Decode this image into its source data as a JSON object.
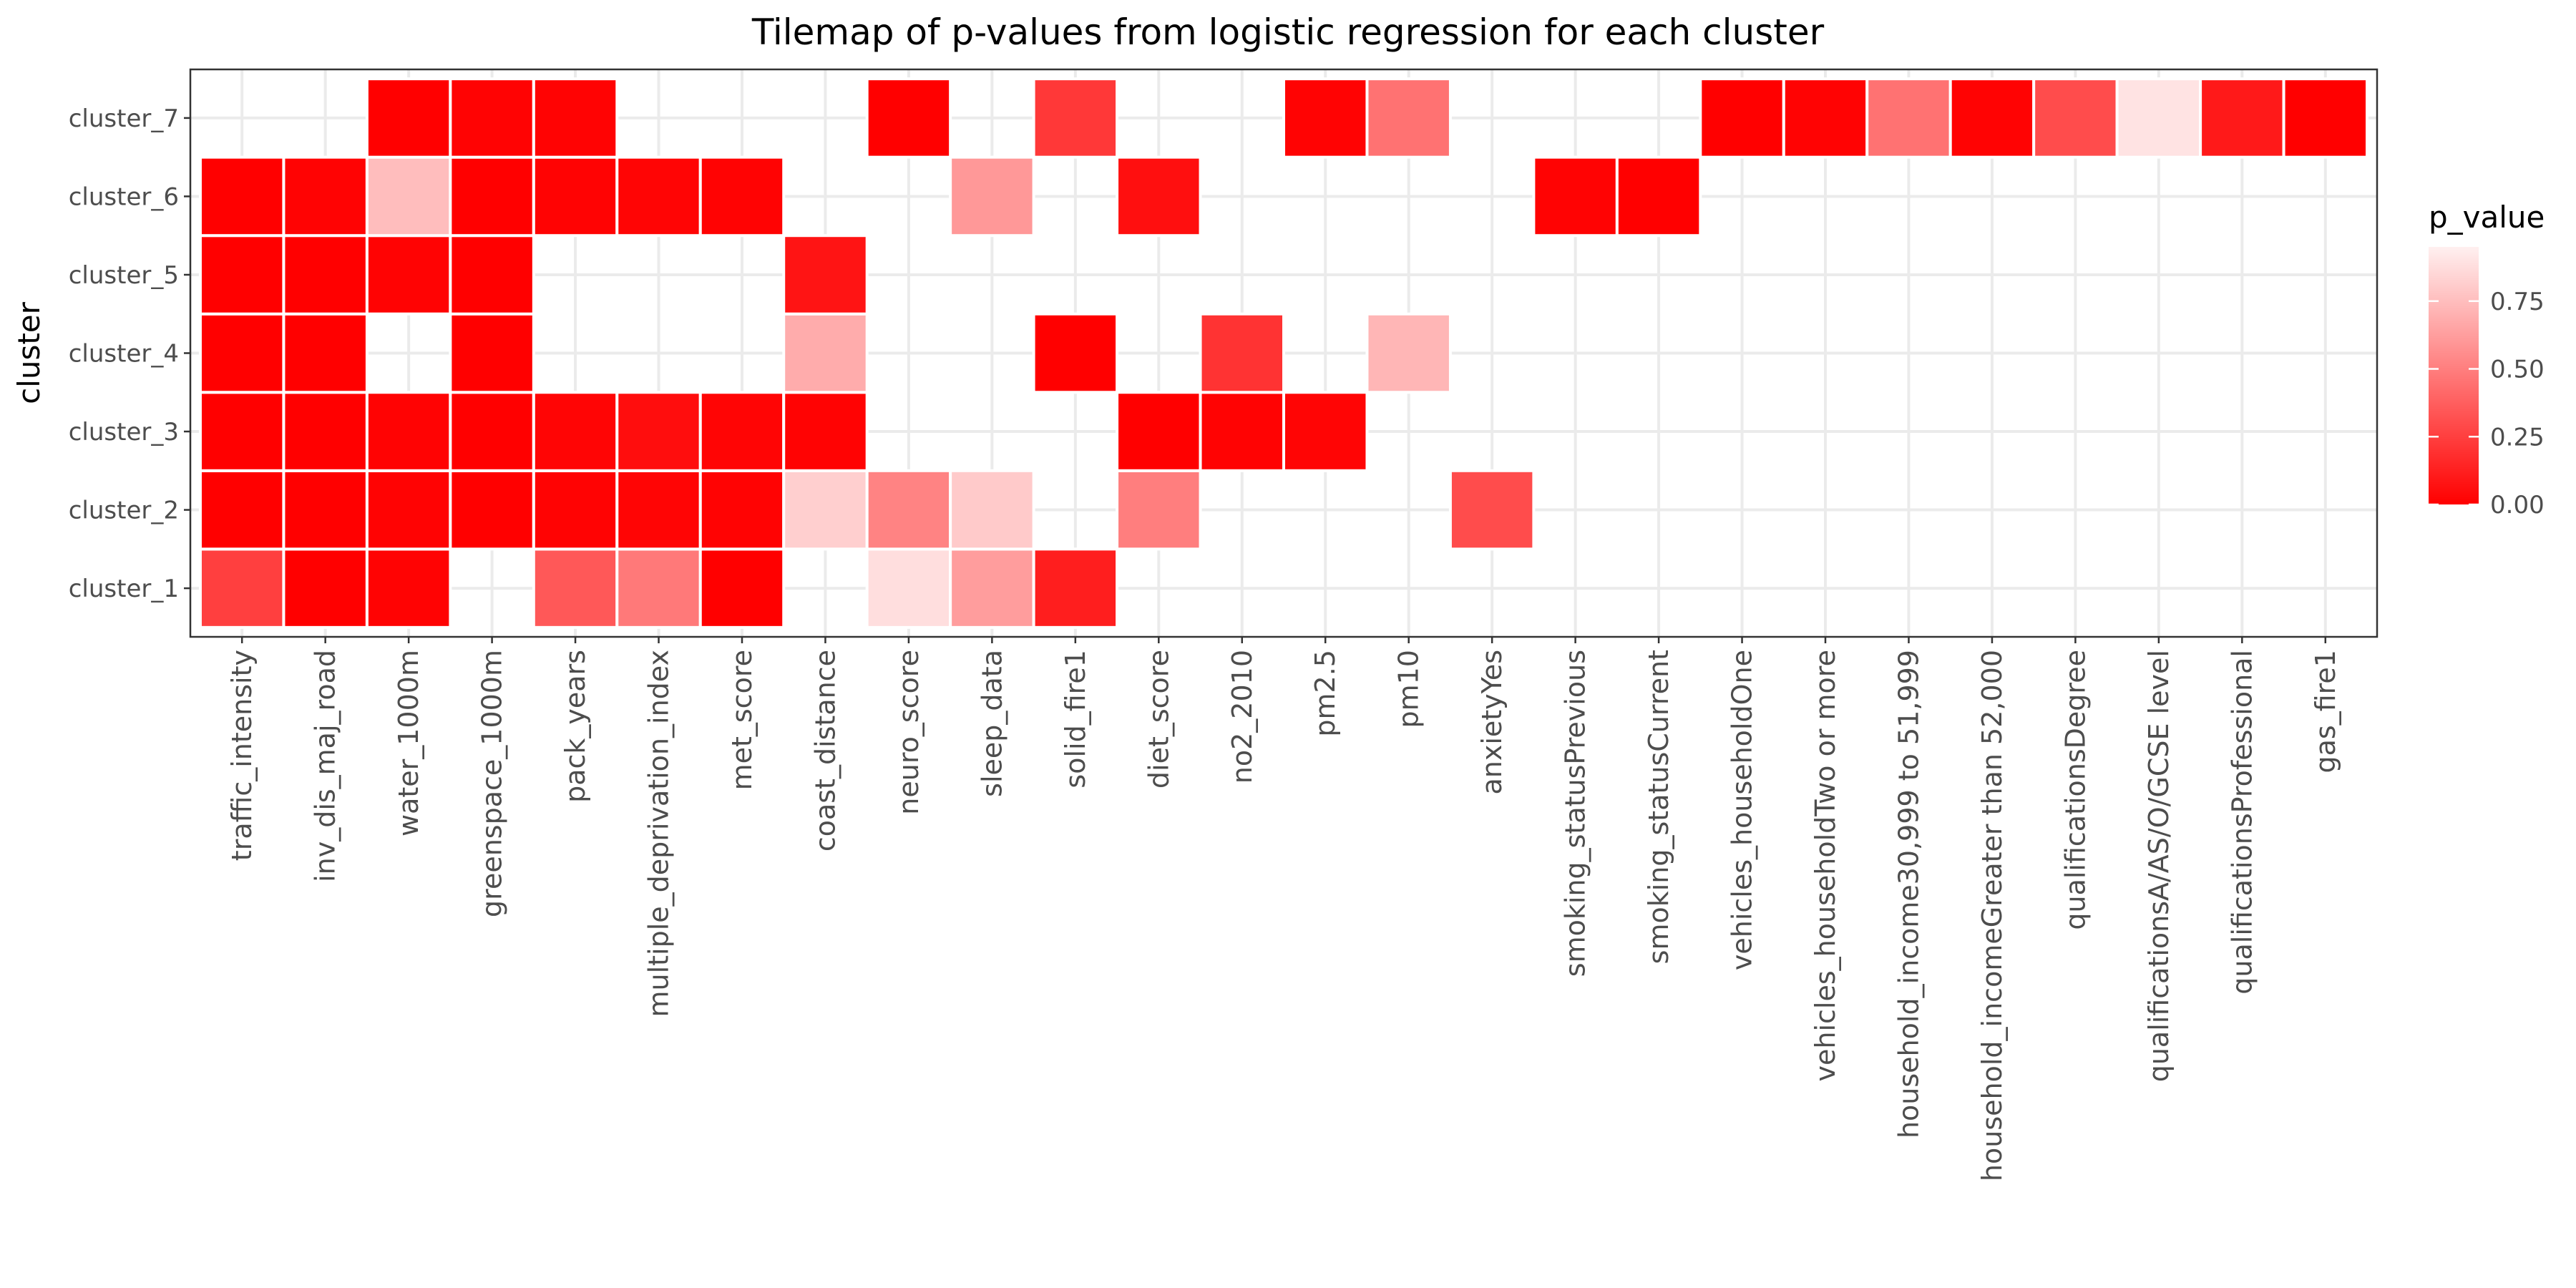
{
  "chart_data": {
    "type": "heatmap",
    "title": "Tilemap of p-values from logistic regression for each cluster",
    "xlabel": "",
    "ylabel": "cluster",
    "legend": {
      "title": "p_value",
      "placement": "right",
      "ticks": [
        0.0,
        0.25,
        0.5,
        0.75
      ],
      "tick_labels": [
        "0.00",
        "0.25",
        "0.50",
        "0.75"
      ],
      "range": [
        0,
        0.95
      ]
    },
    "colors": {
      "low": "#ff0000",
      "high": "#fff0f0",
      "tile_border": "#ffffff",
      "panel_border": "#333333",
      "grid": "#ebebeb"
    },
    "grid": true,
    "x_categories": [
      "traffic_intensity",
      "inv_dis_maj_road",
      "water_1000m",
      "greenspace_1000m",
      "pack_years",
      "multiple_deprivation_index",
      "met_score",
      "coast_distance",
      "neuro_score",
      "sleep_data",
      "solid_fire1",
      "diet_score",
      "no2_2010",
      "pm2.5",
      "pm10",
      "anxietyYes",
      "smoking_statusPrevious",
      "smoking_statusCurrent",
      "vehicles_householdOne",
      "vehicles_householdTwo or more",
      "household_income30,999 to 51,999",
      "household_incomeGreater than 52,000",
      "qualificationsDegree",
      "qualificationsA/AS/O/GCSE level",
      "qualificationsProfessional",
      "gas_fire1"
    ],
    "y_categories": [
      "cluster_1",
      "cluster_2",
      "cluster_3",
      "cluster_4",
      "cluster_5",
      "cluster_6",
      "cluster_7"
    ],
    "cells": [
      {
        "x": "traffic_intensity",
        "y": "cluster_1",
        "p_value": 0.25
      },
      {
        "x": "inv_dis_maj_road",
        "y": "cluster_1",
        "p_value": 0.0
      },
      {
        "x": "water_1000m",
        "y": "cluster_1",
        "p_value": 0.01
      },
      {
        "x": "pack_years",
        "y": "cluster_1",
        "p_value": 0.35
      },
      {
        "x": "multiple_deprivation_index",
        "y": "cluster_1",
        "p_value": 0.48
      },
      {
        "x": "met_score",
        "y": "cluster_1",
        "p_value": 0.0
      },
      {
        "x": "neuro_score",
        "y": "cluster_1",
        "p_value": 0.88
      },
      {
        "x": "sleep_data",
        "y": "cluster_1",
        "p_value": 0.62
      },
      {
        "x": "solid_fire1",
        "y": "cluster_1",
        "p_value": 0.12
      },
      {
        "x": "traffic_intensity",
        "y": "cluster_2",
        "p_value": 0.0
      },
      {
        "x": "inv_dis_maj_road",
        "y": "cluster_2",
        "p_value": 0.0
      },
      {
        "x": "water_1000m",
        "y": "cluster_2",
        "p_value": 0.01
      },
      {
        "x": "greenspace_1000m",
        "y": "cluster_2",
        "p_value": 0.0
      },
      {
        "x": "pack_years",
        "y": "cluster_2",
        "p_value": 0.01
      },
      {
        "x": "multiple_deprivation_index",
        "y": "cluster_2",
        "p_value": 0.02
      },
      {
        "x": "met_score",
        "y": "cluster_2",
        "p_value": 0.01
      },
      {
        "x": "coast_distance",
        "y": "cluster_2",
        "p_value": 0.82
      },
      {
        "x": "neuro_score",
        "y": "cluster_2",
        "p_value": 0.52
      },
      {
        "x": "sleep_data",
        "y": "cluster_2",
        "p_value": 0.8
      },
      {
        "x": "diet_score",
        "y": "cluster_2",
        "p_value": 0.5
      },
      {
        "x": "anxietyYes",
        "y": "cluster_2",
        "p_value": 0.3
      },
      {
        "x": "traffic_intensity",
        "y": "cluster_3",
        "p_value": 0.0
      },
      {
        "x": "inv_dis_maj_road",
        "y": "cluster_3",
        "p_value": 0.0
      },
      {
        "x": "water_1000m",
        "y": "cluster_3",
        "p_value": 0.01
      },
      {
        "x": "greenspace_1000m",
        "y": "cluster_3",
        "p_value": 0.0
      },
      {
        "x": "pack_years",
        "y": "cluster_3",
        "p_value": 0.02
      },
      {
        "x": "multiple_deprivation_index",
        "y": "cluster_3",
        "p_value": 0.05
      },
      {
        "x": "met_score",
        "y": "cluster_3",
        "p_value": 0.02
      },
      {
        "x": "coast_distance",
        "y": "cluster_3",
        "p_value": 0.01
      },
      {
        "x": "diet_score",
        "y": "cluster_3",
        "p_value": 0.0
      },
      {
        "x": "no2_2010",
        "y": "cluster_3",
        "p_value": 0.01
      },
      {
        "x": "pm2.5",
        "y": "cluster_3",
        "p_value": 0.02
      },
      {
        "x": "traffic_intensity",
        "y": "cluster_4",
        "p_value": 0.0
      },
      {
        "x": "inv_dis_maj_road",
        "y": "cluster_4",
        "p_value": 0.0
      },
      {
        "x": "greenspace_1000m",
        "y": "cluster_4",
        "p_value": 0.0
      },
      {
        "x": "coast_distance",
        "y": "cluster_4",
        "p_value": 0.68
      },
      {
        "x": "solid_fire1",
        "y": "cluster_4",
        "p_value": 0.0
      },
      {
        "x": "no2_2010",
        "y": "cluster_4",
        "p_value": 0.2
      },
      {
        "x": "pm10",
        "y": "cluster_4",
        "p_value": 0.72
      },
      {
        "x": "traffic_intensity",
        "y": "cluster_5",
        "p_value": 0.0
      },
      {
        "x": "inv_dis_maj_road",
        "y": "cluster_5",
        "p_value": 0.0
      },
      {
        "x": "water_1000m",
        "y": "cluster_5",
        "p_value": 0.01
      },
      {
        "x": "greenspace_1000m",
        "y": "cluster_5",
        "p_value": 0.0
      },
      {
        "x": "coast_distance",
        "y": "cluster_5",
        "p_value": 0.08
      },
      {
        "x": "traffic_intensity",
        "y": "cluster_6",
        "p_value": 0.0
      },
      {
        "x": "inv_dis_maj_road",
        "y": "cluster_6",
        "p_value": 0.01
      },
      {
        "x": "water_1000m",
        "y": "cluster_6",
        "p_value": 0.75
      },
      {
        "x": "greenspace_1000m",
        "y": "cluster_6",
        "p_value": 0.0
      },
      {
        "x": "pack_years",
        "y": "cluster_6",
        "p_value": 0.01
      },
      {
        "x": "multiple_deprivation_index",
        "y": "cluster_6",
        "p_value": 0.02
      },
      {
        "x": "met_score",
        "y": "cluster_6",
        "p_value": 0.01
      },
      {
        "x": "sleep_data",
        "y": "cluster_6",
        "p_value": 0.6
      },
      {
        "x": "diet_score",
        "y": "cluster_6",
        "p_value": 0.06
      },
      {
        "x": "smoking_statusPrevious",
        "y": "cluster_6",
        "p_value": 0.01
      },
      {
        "x": "smoking_statusCurrent",
        "y": "cluster_6",
        "p_value": 0.0
      },
      {
        "x": "water_1000m",
        "y": "cluster_7",
        "p_value": 0.0
      },
      {
        "x": "greenspace_1000m",
        "y": "cluster_7",
        "p_value": 0.01
      },
      {
        "x": "pack_years",
        "y": "cluster_7",
        "p_value": 0.01
      },
      {
        "x": "neuro_score",
        "y": "cluster_7",
        "p_value": 0.0
      },
      {
        "x": "solid_fire1",
        "y": "cluster_7",
        "p_value": 0.22
      },
      {
        "x": "pm2.5",
        "y": "cluster_7",
        "p_value": 0.01
      },
      {
        "x": "pm10",
        "y": "cluster_7",
        "p_value": 0.45
      },
      {
        "x": "vehicles_householdOne",
        "y": "cluster_7",
        "p_value": 0.0
      },
      {
        "x": "vehicles_householdTwo or more",
        "y": "cluster_7",
        "p_value": 0.01
      },
      {
        "x": "household_income30,999 to 51,999",
        "y": "cluster_7",
        "p_value": 0.45
      },
      {
        "x": "household_incomeGreater than 52,000",
        "y": "cluster_7",
        "p_value": 0.01
      },
      {
        "x": "qualificationsDegree",
        "y": "cluster_7",
        "p_value": 0.3
      },
      {
        "x": "qualificationsA/AS/O/GCSE level",
        "y": "cluster_7",
        "p_value": 0.9
      },
      {
        "x": "qualificationsProfessional",
        "y": "cluster_7",
        "p_value": 0.1
      },
      {
        "x": "gas_fire1",
        "y": "cluster_7",
        "p_value": 0.0
      }
    ]
  }
}
